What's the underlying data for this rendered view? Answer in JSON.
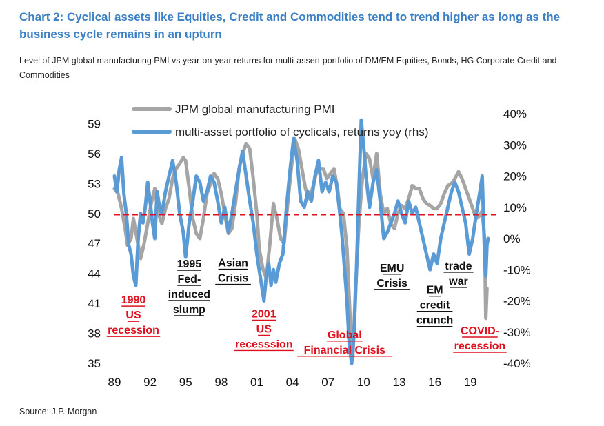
{
  "title": "Chart 2: Cyclical assets like Equities, Credit and Commodities tend to trend higher as long as the business cycle remains in an upturn",
  "subtitle": "Level of JPM global manufacturing PMI vs year-on-year returns for multi-assert portfolio of DM/EM Equities, Bonds, HG Corporate Credit and Commodities",
  "source": "Source: J.P. Morgan",
  "colors": {
    "pmi": "#a5a5a5",
    "portfolio": "#5b9bd5",
    "reference": "#e0101e",
    "annotation_red": "#e0101e",
    "annotation_black": "#111111"
  },
  "chart_data": {
    "type": "line",
    "x_tick_labels": [
      "89",
      "92",
      "95",
      "98",
      "01",
      "04",
      "07",
      "10",
      "13",
      "16",
      "19"
    ],
    "xlim": [
      1989,
      2020.5
    ],
    "y_left": {
      "ticks": [
        59,
        56,
        53,
        50,
        47,
        44,
        41,
        38,
        35
      ],
      "ylim": [
        35,
        60
      ]
    },
    "y_right": {
      "tick_labels": [
        "40%",
        "30%",
        "20%",
        "10%",
        "0%",
        "-10%",
        "-20%",
        "-30%",
        "-40%"
      ],
      "ylim": [
        -40,
        40
      ]
    },
    "reference_line": {
      "axis": "left",
      "value": 49.9,
      "style": "dashed"
    },
    "series": [
      {
        "name": "JPM global manufacturing PMI",
        "axis": "left",
        "points": [
          [
            1989.0,
            52.5
          ],
          [
            1989.3,
            52.0
          ],
          [
            1989.6,
            50.5
          ],
          [
            1989.9,
            48.5
          ],
          [
            1990.1,
            46.8
          ],
          [
            1990.4,
            47.5
          ],
          [
            1990.6,
            49.5
          ],
          [
            1990.9,
            47.5
          ],
          [
            1991.2,
            45.5
          ],
          [
            1991.5,
            47.0
          ],
          [
            1991.8,
            49.0
          ],
          [
            1992.1,
            51.0
          ],
          [
            1992.4,
            52.5
          ],
          [
            1992.7,
            50.0
          ],
          [
            1993.0,
            49.0
          ],
          [
            1993.3,
            50.5
          ],
          [
            1993.6,
            51.5
          ],
          [
            1993.9,
            53.5
          ],
          [
            1994.2,
            54.5
          ],
          [
            1994.5,
            55.0
          ],
          [
            1994.8,
            55.6
          ],
          [
            1995.0,
            55.3
          ],
          [
            1995.3,
            52.5
          ],
          [
            1995.6,
            49.5
          ],
          [
            1995.9,
            48.0
          ],
          [
            1996.2,
            47.5
          ],
          [
            1996.5,
            49.5
          ],
          [
            1996.8,
            52.0
          ],
          [
            1997.1,
            53.0
          ],
          [
            1997.4,
            54.0
          ],
          [
            1997.7,
            53.5
          ],
          [
            1998.0,
            52.0
          ],
          [
            1998.3,
            50.0
          ],
          [
            1998.6,
            48.0
          ],
          [
            1998.9,
            48.5
          ],
          [
            1999.2,
            51.0
          ],
          [
            1999.5,
            54.5
          ],
          [
            1999.8,
            56.0
          ],
          [
            2000.1,
            57.0
          ],
          [
            2000.4,
            56.5
          ],
          [
            2000.7,
            53.5
          ],
          [
            2001.0,
            50.0
          ],
          [
            2001.2,
            46.5
          ],
          [
            2001.5,
            44.5
          ],
          [
            2001.8,
            43.5
          ],
          [
            2002.1,
            47.0
          ],
          [
            2002.4,
            51.0
          ],
          [
            2002.7,
            49.5
          ],
          [
            2003.0,
            47.5
          ],
          [
            2003.3,
            47.0
          ],
          [
            2003.6,
            51.0
          ],
          [
            2003.9,
            54.5
          ],
          [
            2004.2,
            57.5
          ],
          [
            2004.5,
            56.5
          ],
          [
            2004.8,
            54.5
          ],
          [
            2005.1,
            52.5
          ],
          [
            2005.4,
            51.5
          ],
          [
            2005.7,
            52.5
          ],
          [
            2006.0,
            54.0
          ],
          [
            2006.3,
            54.5
          ],
          [
            2006.6,
            54.5
          ],
          [
            2006.9,
            53.5
          ],
          [
            2007.2,
            54.0
          ],
          [
            2007.5,
            54.5
          ],
          [
            2007.8,
            52.5
          ],
          [
            2008.0,
            50.5
          ],
          [
            2008.3,
            50.0
          ],
          [
            2008.6,
            46.5
          ],
          [
            2008.9,
            38.5
          ],
          [
            2009.1,
            35.6
          ],
          [
            2009.3,
            42.0
          ],
          [
            2009.6,
            49.0
          ],
          [
            2009.9,
            53.5
          ],
          [
            2010.2,
            56.0
          ],
          [
            2010.5,
            55.5
          ],
          [
            2010.8,
            53.5
          ],
          [
            2011.1,
            56.0
          ],
          [
            2011.4,
            52.0
          ],
          [
            2011.7,
            50.0
          ],
          [
            2012.0,
            50.5
          ],
          [
            2012.3,
            49.0
          ],
          [
            2012.6,
            48.5
          ],
          [
            2012.9,
            50.0
          ],
          [
            2013.2,
            50.8
          ],
          [
            2013.5,
            50.5
          ],
          [
            2013.8,
            51.5
          ],
          [
            2014.1,
            52.8
          ],
          [
            2014.4,
            52.5
          ],
          [
            2014.7,
            52.5
          ],
          [
            2015.0,
            51.5
          ],
          [
            2015.3,
            51.0
          ],
          [
            2015.6,
            50.8
          ],
          [
            2015.9,
            50.5
          ],
          [
            2016.2,
            50.5
          ],
          [
            2016.5,
            51.0
          ],
          [
            2016.8,
            52.0
          ],
          [
            2017.1,
            52.8
          ],
          [
            2017.4,
            53.0
          ],
          [
            2017.7,
            53.5
          ],
          [
            2018.0,
            54.2
          ],
          [
            2018.3,
            53.5
          ],
          [
            2018.6,
            52.5
          ],
          [
            2018.9,
            51.5
          ],
          [
            2019.2,
            50.5
          ],
          [
            2019.5,
            49.5
          ],
          [
            2019.8,
            49.8
          ],
          [
            2020.0,
            50.3
          ],
          [
            2020.2,
            47.5
          ],
          [
            2020.3,
            39.5
          ],
          [
            2020.4,
            42.5
          ]
        ]
      },
      {
        "name": "multi-asset portfolio of cyclicals, returns yoy (rhs)",
        "axis": "right",
        "points": [
          [
            1989.0,
            20.0
          ],
          [
            1989.2,
            15.0
          ],
          [
            1989.4,
            22.0
          ],
          [
            1989.6,
            26.0
          ],
          [
            1989.8,
            14.0
          ],
          [
            1990.0,
            8.0
          ],
          [
            1990.2,
            -2.0
          ],
          [
            1990.4,
            -5.0
          ],
          [
            1990.6,
            -12.0
          ],
          [
            1990.8,
            -15.0
          ],
          [
            1991.0,
            0.0
          ],
          [
            1991.2,
            8.0
          ],
          [
            1991.4,
            5.0
          ],
          [
            1991.6,
            10.0
          ],
          [
            1991.8,
            18.0
          ],
          [
            1992.0,
            12.0
          ],
          [
            1992.2,
            5.0
          ],
          [
            1992.4,
            0.0
          ],
          [
            1992.6,
            15.0
          ],
          [
            1992.8,
            10.0
          ],
          [
            1993.0,
            8.0
          ],
          [
            1993.3,
            15.0
          ],
          [
            1993.6,
            20.0
          ],
          [
            1993.9,
            25.0
          ],
          [
            1994.2,
            18.0
          ],
          [
            1994.5,
            8.0
          ],
          [
            1994.8,
            2.0
          ],
          [
            1995.0,
            -6.0
          ],
          [
            1995.3,
            5.0
          ],
          [
            1995.6,
            12.0
          ],
          [
            1995.9,
            20.0
          ],
          [
            1996.2,
            18.0
          ],
          [
            1996.5,
            12.0
          ],
          [
            1996.8,
            15.0
          ],
          [
            1997.1,
            20.0
          ],
          [
            1997.4,
            18.0
          ],
          [
            1997.7,
            12.0
          ],
          [
            1998.0,
            5.0
          ],
          [
            1998.3,
            10.0
          ],
          [
            1998.6,
            2.0
          ],
          [
            1998.9,
            8.0
          ],
          [
            1999.2,
            15.0
          ],
          [
            1999.5,
            22.0
          ],
          [
            1999.8,
            28.0
          ],
          [
            2000.1,
            20.0
          ],
          [
            2000.4,
            12.0
          ],
          [
            2000.7,
            5.0
          ],
          [
            2001.0,
            -5.0
          ],
          [
            2001.2,
            -10.0
          ],
          [
            2001.4,
            -15.0
          ],
          [
            2001.6,
            -20.0
          ],
          [
            2001.8,
            -12.0
          ],
          [
            2002.0,
            -8.0
          ],
          [
            2002.2,
            -15.0
          ],
          [
            2002.4,
            -10.0
          ],
          [
            2002.6,
            -14.0
          ],
          [
            2002.9,
            -8.0
          ],
          [
            2003.2,
            -5.0
          ],
          [
            2003.5,
            10.0
          ],
          [
            2003.8,
            22.0
          ],
          [
            2004.1,
            32.0
          ],
          [
            2004.4,
            25.0
          ],
          [
            2004.7,
            12.0
          ],
          [
            2005.0,
            10.0
          ],
          [
            2005.3,
            15.0
          ],
          [
            2005.6,
            12.0
          ],
          [
            2005.9,
            20.0
          ],
          [
            2006.2,
            25.0
          ],
          [
            2006.5,
            15.0
          ],
          [
            2006.8,
            18.0
          ],
          [
            2007.1,
            15.0
          ],
          [
            2007.4,
            20.0
          ],
          [
            2007.7,
            18.0
          ],
          [
            2008.0,
            8.0
          ],
          [
            2008.2,
            0.0
          ],
          [
            2008.4,
            -10.0
          ],
          [
            2008.6,
            -20.0
          ],
          [
            2008.8,
            -35.0
          ],
          [
            2009.0,
            -40.0
          ],
          [
            2009.2,
            -30.0
          ],
          [
            2009.4,
            -10.0
          ],
          [
            2009.6,
            15.0
          ],
          [
            2009.8,
            38.0
          ],
          [
            2010.0,
            30.0
          ],
          [
            2010.2,
            20.0
          ],
          [
            2010.5,
            10.0
          ],
          [
            2010.8,
            18.0
          ],
          [
            2011.1,
            22.0
          ],
          [
            2011.4,
            12.0
          ],
          [
            2011.7,
            0.0
          ],
          [
            2012.0,
            2.0
          ],
          [
            2012.3,
            5.0
          ],
          [
            2012.6,
            8.0
          ],
          [
            2012.9,
            12.0
          ],
          [
            2013.2,
            8.0
          ],
          [
            2013.5,
            5.0
          ],
          [
            2013.8,
            12.0
          ],
          [
            2014.1,
            8.0
          ],
          [
            2014.4,
            10.0
          ],
          [
            2014.7,
            5.0
          ],
          [
            2015.0,
            0.0
          ],
          [
            2015.3,
            -5.0
          ],
          [
            2015.6,
            -10.0
          ],
          [
            2015.9,
            -5.0
          ],
          [
            2016.2,
            -8.0
          ],
          [
            2016.5,
            0.0
          ],
          [
            2016.8,
            5.0
          ],
          [
            2017.1,
            10.0
          ],
          [
            2017.4,
            15.0
          ],
          [
            2017.7,
            18.0
          ],
          [
            2018.0,
            15.0
          ],
          [
            2018.3,
            10.0
          ],
          [
            2018.6,
            5.0
          ],
          [
            2018.9,
            -5.0
          ],
          [
            2019.2,
            0.0
          ],
          [
            2019.5,
            8.0
          ],
          [
            2019.8,
            15.0
          ],
          [
            2020.0,
            20.0
          ],
          [
            2020.2,
            -5.0
          ],
          [
            2020.3,
            -12.0
          ],
          [
            2020.4,
            -2.0
          ],
          [
            2020.5,
            0.0
          ]
        ]
      }
    ],
    "annotations": [
      {
        "lines": [
          "1990",
          "US",
          "recession"
        ],
        "color": "red",
        "x": 1990.6,
        "y": 41.0
      },
      {
        "lines": [
          "1995",
          "Fed-",
          "induced",
          "slump"
        ],
        "color": "black",
        "x": 1995.3,
        "y": 44.6
      },
      {
        "lines": [
          "Asian",
          "Crisis"
        ],
        "color": "black",
        "x": 1999.0,
        "y": 44.7
      },
      {
        "lines": [
          "2001",
          "US",
          "recesssion"
        ],
        "color": "red",
        "x": 2001.6,
        "y": 39.6
      },
      {
        "lines": [
          "Global",
          "Financial Crisis"
        ],
        "color": "red",
        "x": 2008.4,
        "y": 37.5
      },
      {
        "lines": [
          "EMU",
          "Crisis"
        ],
        "color": "black",
        "x": 2012.4,
        "y": 44.2
      },
      {
        "lines": [
          "EM",
          "credit",
          "crunch"
        ],
        "color": "black",
        "x": 2016.0,
        "y": 42.0
      },
      {
        "lines": [
          "trade",
          "war"
        ],
        "color": "black",
        "x": 2018.0,
        "y": 44.4
      },
      {
        "lines": [
          "COVID-",
          "recession"
        ],
        "color": "red",
        "x": 2019.8,
        "y": 37.9
      }
    ]
  }
}
